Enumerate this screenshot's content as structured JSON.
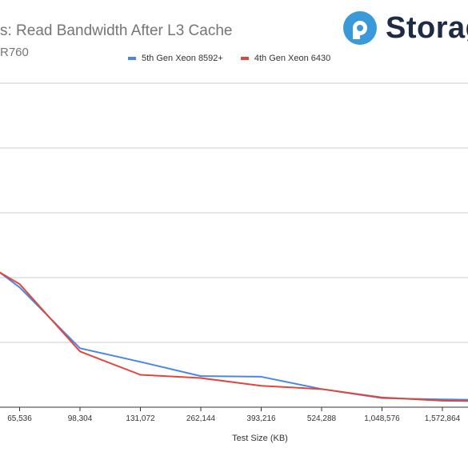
{
  "header": {
    "title": "s: Read Bandwidth After L3 Cache",
    "subtitle": "R760"
  },
  "logo": {
    "text": "Storag",
    "mark": "storagereview-logo-icon",
    "color": "#3a9ad9"
  },
  "chart_data": {
    "type": "line",
    "title": "s: Read Bandwidth After L3 Cache",
    "subtitle": "R760",
    "xlabel": "Test Size (KB)",
    "ylabel": "",
    "categories": [
      "",
      "65,536",
      "98,304",
      "131,072",
      "262,144",
      "393,216",
      "524,288",
      "1,048,576",
      "1,572,864",
      ""
    ],
    "ylim": [
      0,
      5
    ],
    "grid": true,
    "legend_position": "top",
    "series": [
      {
        "name": "5th Gen Xeon 8592+",
        "color": "#4a86e8",
        "values": [
          2.55,
          1.85,
          0.91,
          0.7,
          0.48,
          0.47,
          0.28,
          0.14,
          0.12,
          0.11
        ]
      },
      {
        "name": "4th Gen Xeon 6430",
        "color": "#e0473c",
        "values": [
          2.45,
          1.9,
          0.86,
          0.5,
          0.45,
          0.33,
          0.28,
          0.15,
          0.1,
          0.09
        ]
      }
    ]
  }
}
